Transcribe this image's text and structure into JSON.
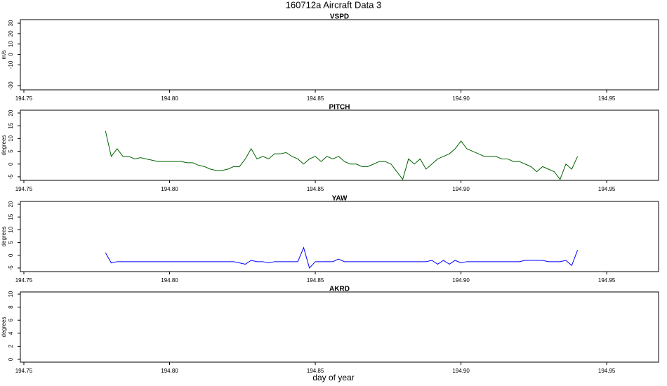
{
  "title": "160712a   Aircraft Data 3",
  "x_label": "day of year",
  "chart_data": [
    {
      "type": "line",
      "title": "VSPD",
      "y_label": "m/s",
      "x": [],
      "values": [],
      "color": "#000000",
      "xlim": [
        194.7488,
        194.9678
      ],
      "ylim": [
        -34,
        33.4
      ],
      "xticks": [
        194.75,
        {
          "value": 194.8,
          "label": "194.80"
        },
        194.85,
        {
          "value": 194.9,
          "label": "194.90"
        },
        194.95
      ],
      "yticks": [
        -30,
        -10,
        0,
        10,
        20,
        30
      ]
    },
    {
      "type": "line",
      "title": "PITCH",
      "y_label": "degrees",
      "color": "#006400",
      "x": [
        194.778,
        194.78,
        194.782,
        194.784,
        194.786,
        194.788,
        194.79,
        194.792,
        194.794,
        194.796,
        194.798,
        194.8,
        194.802,
        194.804,
        194.806,
        194.808,
        194.81,
        194.812,
        194.814,
        194.816,
        194.818,
        194.82,
        194.822,
        194.824,
        194.826,
        194.828,
        194.83,
        194.832,
        194.834,
        194.836,
        194.838,
        194.84,
        194.842,
        194.844,
        194.846,
        194.848,
        194.85,
        194.852,
        194.854,
        194.856,
        194.858,
        194.86,
        194.862,
        194.864,
        194.866,
        194.868,
        194.87,
        194.872,
        194.874,
        194.876,
        194.878,
        194.88,
        194.882,
        194.884,
        194.886,
        194.888,
        194.89,
        194.892,
        194.894,
        194.896,
        194.898,
        194.9,
        194.902,
        194.904,
        194.906,
        194.908,
        194.91,
        194.912,
        194.914,
        194.916,
        194.918,
        194.92,
        194.922,
        194.924,
        194.926,
        194.928,
        194.93,
        194.932,
        194.934,
        194.936,
        194.938,
        194.94
      ],
      "values": [
        13,
        3,
        6,
        3,
        3,
        2,
        2.5,
        2,
        1.5,
        1,
        1,
        1,
        1,
        1,
        0.5,
        0.5,
        -0.5,
        -1,
        -2,
        -2.5,
        -2.5,
        -2,
        -1,
        -1,
        2,
        6,
        2,
        3,
        2,
        4,
        4,
        4.5,
        3,
        2,
        0,
        2,
        3,
        1,
        3,
        2,
        3,
        1,
        0,
        0,
        -1,
        -1,
        0,
        1,
        1,
        0,
        -3,
        -6,
        2,
        0,
        2,
        -2,
        0,
        2,
        3,
        4,
        6,
        9,
        6,
        5,
        4,
        3,
        3,
        3,
        2,
        2,
        1,
        1,
        0,
        -1,
        -3,
        -1,
        -2,
        -3,
        -6,
        0,
        -2,
        3
      ],
      "xlim": [
        194.7488,
        194.9678
      ],
      "ylim": [
        -6.4,
        21.1
      ],
      "xticks": [
        194.75,
        {
          "value": 194.8,
          "label": "194.80"
        },
        194.85,
        {
          "value": 194.9,
          "label": "194.90"
        },
        194.95
      ],
      "yticks": [
        -5,
        0,
        5,
        10,
        15,
        20
      ]
    },
    {
      "type": "line",
      "title": "YAW",
      "y_label": "degrees",
      "color": "#0000ff",
      "x": [
        194.778,
        194.78,
        194.782,
        194.784,
        194.786,
        194.788,
        194.79,
        194.792,
        194.794,
        194.796,
        194.798,
        194.8,
        194.802,
        194.804,
        194.806,
        194.808,
        194.81,
        194.812,
        194.814,
        194.816,
        194.818,
        194.82,
        194.822,
        194.824,
        194.826,
        194.828,
        194.83,
        194.832,
        194.834,
        194.836,
        194.838,
        194.84,
        194.842,
        194.844,
        194.846,
        194.848,
        194.85,
        194.852,
        194.854,
        194.856,
        194.858,
        194.86,
        194.862,
        194.864,
        194.866,
        194.868,
        194.87,
        194.872,
        194.874,
        194.876,
        194.878,
        194.88,
        194.882,
        194.884,
        194.886,
        194.888,
        194.89,
        194.892,
        194.894,
        194.896,
        194.898,
        194.9,
        194.902,
        194.904,
        194.906,
        194.908,
        194.91,
        194.912,
        194.914,
        194.916,
        194.918,
        194.92,
        194.922,
        194.924,
        194.926,
        194.928,
        194.93,
        194.932,
        194.934,
        194.936,
        194.938,
        194.94
      ],
      "values": [
        1,
        -3,
        -2.5,
        -2.5,
        -2.5,
        -2.5,
        -2.5,
        -2.5,
        -2.5,
        -2.5,
        -2.5,
        -2.5,
        -2.5,
        -2.5,
        -2.5,
        -2.5,
        -2.5,
        -2.5,
        -2.5,
        -2.5,
        -2.5,
        -2.5,
        -2.5,
        -3,
        -3.5,
        -2,
        -2.5,
        -2.5,
        -3,
        -2.5,
        -2.5,
        -2.5,
        -2.5,
        -2.5,
        3,
        -5,
        -2.5,
        -2.5,
        -2.5,
        -2.5,
        -1.5,
        -2.5,
        -2.5,
        -2.5,
        -2.5,
        -2.5,
        -2.5,
        -2.5,
        -2.5,
        -2.5,
        -2.5,
        -2.5,
        -2.5,
        -2.5,
        -2.5,
        -2.5,
        -2,
        -3.5,
        -2,
        -3.5,
        -2,
        -3,
        -2.5,
        -2.5,
        -2.5,
        -2.5,
        -2.5,
        -2.5,
        -2.5,
        -2.5,
        -2.5,
        -2.5,
        -2,
        -2,
        -2,
        -2,
        -2.5,
        -2.5,
        -2.5,
        -2,
        -4,
        2
      ],
      "xlim": [
        194.7488,
        194.9678
      ],
      "ylim": [
        -6.4,
        21.1
      ],
      "xticks": [
        194.75,
        {
          "value": 194.8,
          "label": "194.80"
        },
        194.85,
        {
          "value": 194.9,
          "label": "194.90"
        },
        194.95
      ],
      "yticks": [
        -5,
        0,
        5,
        10,
        15,
        20
      ]
    },
    {
      "type": "line",
      "title": "AKRD",
      "y_label": "degrees",
      "x": [],
      "values": [],
      "color": "#000000",
      "xlim": [
        194.7488,
        194.9678
      ],
      "ylim": [
        -0.43,
        10.33
      ],
      "xticks": [
        194.75,
        {
          "value": 194.8,
          "label": "194.80"
        },
        194.85,
        {
          "value": 194.9,
          "label": "194.90"
        },
        194.95
      ],
      "yticks": [
        0,
        2,
        4,
        6,
        8,
        10
      ]
    }
  ]
}
